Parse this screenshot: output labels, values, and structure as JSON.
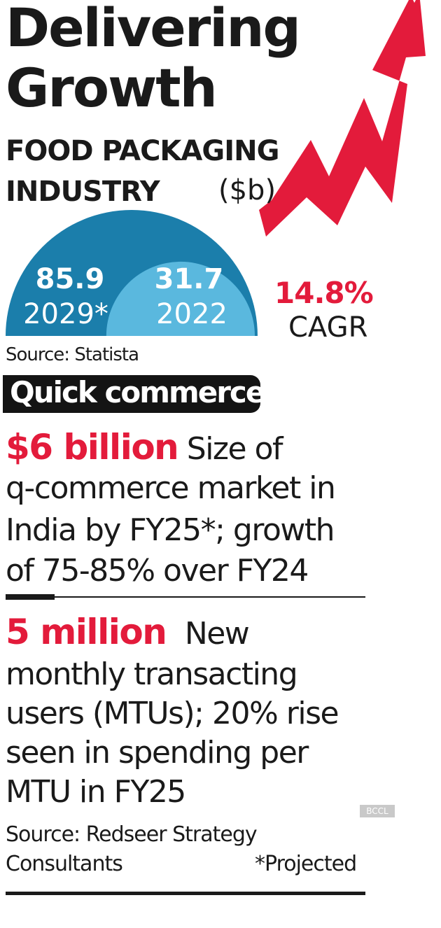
{
  "title_line1": "Delivering",
  "title_line2": "Growth",
  "subtitle_line1": "FOOD PACKAGING",
  "subtitle_line2": "INDUSTRY",
  "unit": "($b)",
  "chart_data": {
    "type": "semicircle-area",
    "series": [
      {
        "name": "2029*",
        "value": 85.9
      },
      {
        "name": "2022",
        "value": 31.7
      }
    ],
    "annotation": {
      "value": "14.8%",
      "label": "CAGR"
    },
    "colors": {
      "outer": "#1b7eab",
      "inner": "#5ab8de",
      "arrow": "#e31b3b"
    }
  },
  "source1": "Source: Statista",
  "section_label": "Quick commerce",
  "fact1": {
    "highlight": "$6 billion",
    "line1_rest": "Size of",
    "line2": "q-commerce market in",
    "line3": "India by FY25*; growth",
    "line4": "of 75-85% over FY24"
  },
  "fact2": {
    "highlight": "5 million",
    "line1_rest": "New",
    "line2": "monthly transacting",
    "line3": "users (MTUs); 20% rise",
    "line4": "seen in spending per",
    "line5": "MTU in FY25"
  },
  "watermark": "BCCL",
  "source2_line1": "Source: Redseer Strategy",
  "source2_line2": "Consultants",
  "footnote": "*Projected"
}
